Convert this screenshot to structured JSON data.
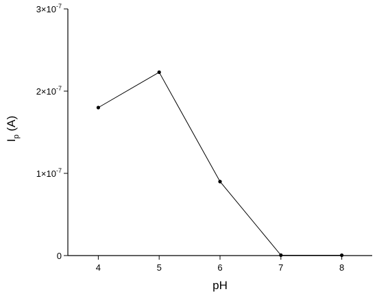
{
  "chart_data": {
    "type": "line",
    "xlabel": "pH",
    "ylabel": {
      "main": "I",
      "subscript": "p",
      "unit": "(A)"
    },
    "xlim": [
      3.5,
      8.5
    ],
    "ylim": [
      0,
      3e-07
    ],
    "x_ticks": [
      {
        "value": 4,
        "label": "4"
      },
      {
        "value": 5,
        "label": "5"
      },
      {
        "value": 6,
        "label": "6"
      },
      {
        "value": 7,
        "label": "7"
      },
      {
        "value": 8,
        "label": "8"
      }
    ],
    "y_ticks": [
      {
        "value": 0,
        "label": "0"
      },
      {
        "value": 1e-07,
        "mantissa": "1",
        "exponent": "-7"
      },
      {
        "value": 2e-07,
        "mantissa": "2",
        "exponent": "-7"
      },
      {
        "value": 3e-07,
        "mantissa": "3",
        "exponent": "-7"
      }
    ],
    "series": [
      {
        "x": [
          4,
          5,
          6,
          7,
          8
        ],
        "y": [
          1.8e-07,
          2.23e-07,
          9e-08,
          5e-10,
          4e-10
        ],
        "line_color": "#000000",
        "marker_color": "#000000"
      }
    ],
    "grid": false,
    "legend": false
  }
}
